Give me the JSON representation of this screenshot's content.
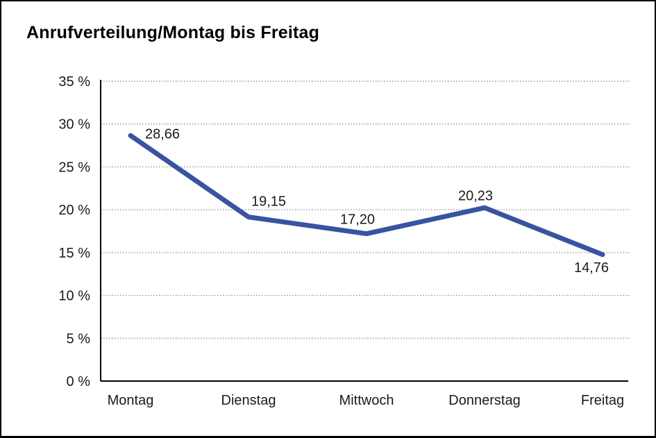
{
  "chart_data": {
    "type": "line",
    "title": "Anrufverteilung/Montag bis Freitag",
    "categories": [
      "Montag",
      "Dienstag",
      "Mittwoch",
      "Donnerstag",
      "Freitag"
    ],
    "series": [
      {
        "name": "Anrufverteilung",
        "values": [
          28.66,
          19.15,
          17.2,
          20.23,
          14.76
        ],
        "point_labels": [
          "28,66",
          "19,15",
          "17,20",
          "20,23",
          "14,76"
        ]
      }
    ],
    "xlabel": "",
    "ylabel": "",
    "ylim": [
      0,
      35
    ],
    "y_tick_values": [
      0,
      5,
      10,
      15,
      20,
      25,
      30,
      35
    ],
    "y_tick_labels": [
      "0 %",
      "5 %",
      "10 %",
      "15 %",
      "20 %",
      "25 %",
      "30 %",
      "35 %"
    ],
    "grid": "horizontal-dotted",
    "legend_position": "none",
    "colors": {
      "line": "#3953a3",
      "axis": "#000000",
      "gridline": "#8f8f8f",
      "text": "#1a1a1a",
      "background": "#ffffff"
    }
  }
}
